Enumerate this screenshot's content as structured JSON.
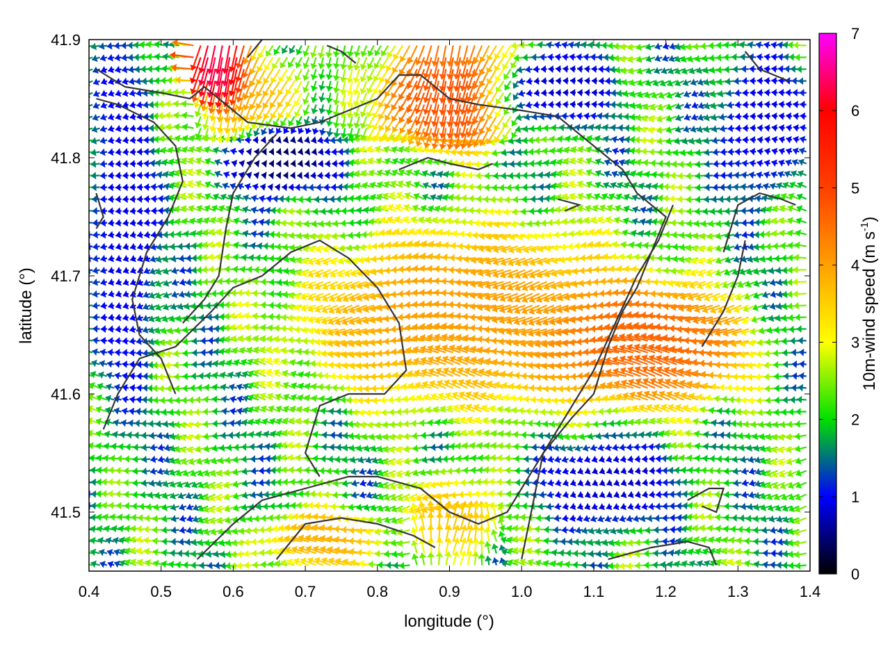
{
  "chart_data": {
    "type": "vector-field",
    "xlabel": "longitude (°)",
    "ylabel": "latitude (°)",
    "xlim": [
      0.4,
      1.4
    ],
    "ylim": [
      41.45,
      41.9
    ],
    "xticks": [
      0.4,
      0.5,
      0.6,
      0.7,
      0.8,
      0.9,
      1.0,
      1.1,
      1.2,
      1.3,
      1.4
    ],
    "xtick_labels": [
      "0.4",
      "0.5",
      "0.6",
      "0.7",
      "0.8",
      "0.9",
      "1.0",
      "1.1",
      "1.2",
      "1.3",
      "1.4"
    ],
    "yticks": [
      41.5,
      41.6,
      41.7,
      41.8,
      41.9
    ],
    "ytick_labels": [
      "41.5",
      "41.6",
      "41.7",
      "41.8",
      "41.9"
    ],
    "grid": false,
    "colorbar": {
      "label_main": "10m-wind speed (m s",
      "label_sup": "-1",
      "label_end": ")",
      "range": [
        0,
        7
      ],
      "ticks": [
        0,
        1,
        2,
        3,
        4,
        5,
        6,
        7
      ],
      "tick_labels": [
        "0",
        "1",
        "2",
        "3",
        "4",
        "5",
        "6",
        "7"
      ],
      "colormap": [
        "#000000",
        "#0000ff",
        "#00e000",
        "#ffff00",
        "#ffa000",
        "#ff4000",
        "#ff0000",
        "#ff00ff"
      ]
    },
    "wind_field": {
      "x_step": 0.01,
      "y_step": 0.01,
      "dominant_direction": "from east (westward arrows)",
      "speed_regions": [
        {
          "lon": [
            0.73,
            1.17
          ],
          "lat": [
            41.6,
            41.73
          ],
          "speed": 4.0
        },
        {
          "lon": [
            1.1,
            1.3
          ],
          "lat": [
            41.6,
            41.68
          ],
          "speed": 4.6
        },
        {
          "lon": [
            0.58,
            0.68
          ],
          "lat": [
            41.82,
            41.88
          ],
          "speed": 3.8
        },
        {
          "lon": [
            0.83,
            0.98
          ],
          "lat": [
            41.82,
            41.9
          ],
          "speed": 4.8
        },
        {
          "lon": [
            0.56,
            0.6
          ],
          "lat": [
            41.87,
            41.9
          ],
          "speed": 6.3
        },
        {
          "lon": [
            0.68,
            0.8
          ],
          "lat": [
            41.46,
            41.49
          ],
          "speed": 3.8
        },
        {
          "lon": [
            0.87,
            0.95
          ],
          "lat": [
            41.47,
            41.52
          ],
          "speed": 3.6
        },
        {
          "lon": [
            0.43,
            0.48
          ],
          "lat": [
            41.6,
            41.9
          ],
          "speed": 0.9
        },
        {
          "lon": [
            0.62,
            0.72
          ],
          "lat": [
            41.78,
            41.82
          ],
          "speed": 0.4
        },
        {
          "lon": [
            1.05,
            1.2
          ],
          "lat": [
            41.5,
            41.55
          ],
          "speed": 0.8
        },
        {
          "lon": [
            1.0,
            1.12
          ],
          "lat": [
            41.84,
            41.88
          ],
          "speed": 0.8
        },
        {
          "lon": [
            1.3,
            1.38
          ],
          "lat": [
            41.78,
            41.88
          ],
          "speed": 0.9
        }
      ],
      "background_speed": 2.0
    },
    "contours": [
      [
        [
          0.41,
          41.875
        ],
        [
          0.45,
          41.86
        ],
        [
          0.5,
          41.855
        ],
        [
          0.54,
          41.85
        ],
        [
          0.56,
          41.86
        ],
        [
          0.6,
          41.84
        ],
        [
          0.62,
          41.83
        ],
        [
          0.68,
          41.825
        ],
        [
          0.72,
          41.83
        ],
        [
          0.76,
          41.84
        ],
        [
          0.8,
          41.85
        ],
        [
          0.83,
          41.87
        ],
        [
          0.86,
          41.87
        ],
        [
          0.9,
          41.85
        ],
        [
          0.94,
          41.845
        ],
        [
          1.0,
          41.84
        ],
        [
          1.05,
          41.835
        ],
        [
          1.1,
          41.81
        ],
        [
          1.14,
          41.79
        ],
        [
          1.16,
          41.77
        ],
        [
          1.19,
          41.755
        ],
        [
          1.2,
          41.75
        ],
        [
          1.18,
          41.72
        ],
        [
          1.16,
          41.69
        ],
        [
          1.14,
          41.67
        ],
        [
          1.12,
          41.64
        ],
        [
          1.1,
          41.6
        ],
        [
          1.07,
          41.58
        ],
        [
          1.03,
          41.55
        ],
        [
          1.02,
          41.52
        ],
        [
          1.01,
          41.49
        ],
        [
          1.0,
          41.46
        ]
      ],
      [
        [
          0.41,
          41.85
        ],
        [
          0.44,
          41.845
        ],
        [
          0.49,
          41.83
        ],
        [
          0.52,
          41.81
        ],
        [
          0.53,
          41.78
        ],
        [
          0.51,
          41.75
        ],
        [
          0.48,
          41.72
        ],
        [
          0.46,
          41.68
        ],
        [
          0.47,
          41.65
        ],
        [
          0.5,
          41.63
        ],
        [
          0.52,
          41.6
        ]
      ],
      [
        [
          0.53,
          41.66
        ],
        [
          0.56,
          41.68
        ],
        [
          0.58,
          41.7
        ],
        [
          0.59,
          41.74
        ],
        [
          0.6,
          41.77
        ],
        [
          0.63,
          41.8
        ],
        [
          0.66,
          41.82
        ]
      ],
      [
        [
          0.42,
          41.57
        ],
        [
          0.44,
          41.6
        ],
        [
          0.47,
          41.63
        ],
        [
          0.52,
          41.64
        ],
        [
          0.57,
          41.67
        ],
        [
          0.6,
          41.69
        ],
        [
          0.64,
          41.7
        ],
        [
          0.68,
          41.72
        ],
        [
          0.72,
          41.73
        ],
        [
          0.76,
          41.715
        ],
        [
          0.8,
          41.69
        ],
        [
          0.83,
          41.66
        ],
        [
          0.84,
          41.62
        ],
        [
          0.81,
          41.6
        ],
        [
          0.76,
          41.6
        ],
        [
          0.72,
          41.59
        ],
        [
          0.7,
          41.55
        ],
        [
          0.72,
          41.53
        ]
      ],
      [
        [
          0.55,
          41.46
        ],
        [
          0.6,
          41.49
        ],
        [
          0.64,
          41.51
        ],
        [
          0.7,
          41.52
        ],
        [
          0.76,
          41.53
        ],
        [
          0.8,
          41.53
        ],
        [
          0.86,
          41.52
        ],
        [
          0.9,
          41.5
        ],
        [
          0.94,
          41.49
        ],
        [
          0.98,
          41.5
        ],
        [
          1.0,
          41.52
        ],
        [
          1.05,
          41.57
        ],
        [
          1.1,
          41.62
        ],
        [
          1.13,
          41.66
        ],
        [
          1.16,
          41.7
        ],
        [
          1.19,
          41.73
        ],
        [
          1.21,
          41.76
        ]
      ],
      [
        [
          0.66,
          41.46
        ],
        [
          0.7,
          41.49
        ],
        [
          0.75,
          41.495
        ],
        [
          0.8,
          41.49
        ],
        [
          0.85,
          41.48
        ],
        [
          0.88,
          41.47
        ]
      ],
      [
        [
          1.23,
          41.51
        ],
        [
          1.26,
          41.52
        ],
        [
          1.28,
          41.52
        ],
        [
          1.27,
          41.5
        ],
        [
          1.25,
          41.505
        ]
      ],
      [
        [
          1.12,
          41.46
        ],
        [
          1.18,
          41.47
        ],
        [
          1.23,
          41.475
        ],
        [
          1.26,
          41.47
        ],
        [
          1.27,
          41.455
        ]
      ],
      [
        [
          0.83,
          41.79
        ],
        [
          0.87,
          41.8
        ],
        [
          0.9,
          41.795
        ],
        [
          0.94,
          41.79
        ],
        [
          0.96,
          41.795
        ]
      ],
      [
        [
          1.05,
          41.765
        ],
        [
          1.08,
          41.76
        ],
        [
          1.06,
          41.755
        ]
      ],
      [
        [
          1.28,
          41.72
        ],
        [
          1.3,
          41.76
        ],
        [
          1.33,
          41.77
        ],
        [
          1.36,
          41.765
        ],
        [
          1.38,
          41.76
        ]
      ],
      [
        [
          1.25,
          41.64
        ],
        [
          1.28,
          41.67
        ],
        [
          1.3,
          41.7
        ],
        [
          1.31,
          41.73
        ]
      ],
      [
        [
          0.41,
          41.77
        ],
        [
          0.42,
          41.75
        ],
        [
          0.41,
          41.74
        ]
      ],
      [
        [
          0.62,
          41.885
        ],
        [
          0.64,
          41.9
        ]
      ],
      [
        [
          0.73,
          41.895
        ],
        [
          0.75,
          41.89
        ],
        [
          0.77,
          41.88
        ]
      ],
      [
        [
          1.31,
          41.89
        ],
        [
          1.33,
          41.875
        ],
        [
          1.37,
          41.865
        ]
      ]
    ]
  }
}
